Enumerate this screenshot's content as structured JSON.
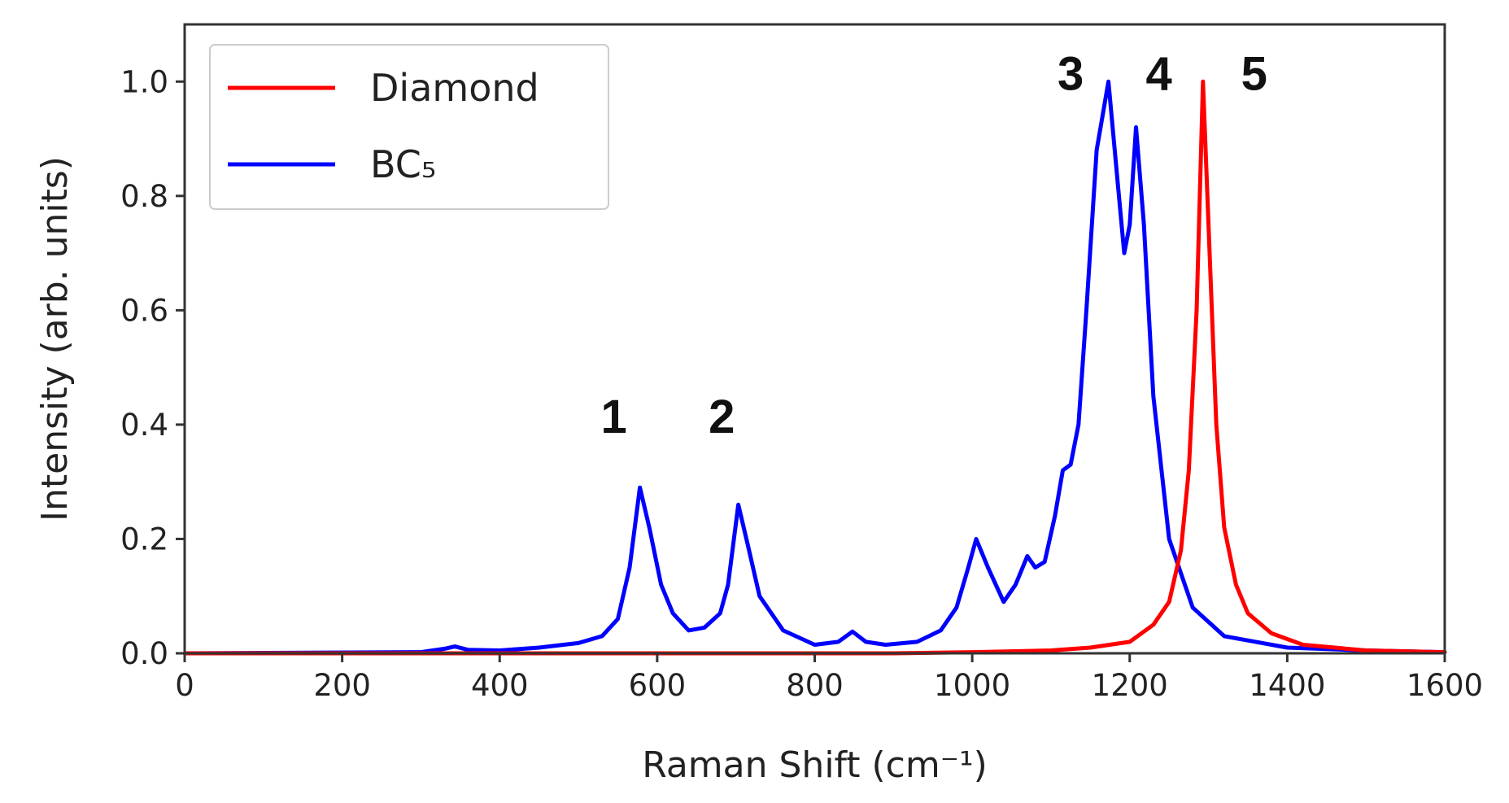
{
  "chart_data": {
    "type": "line",
    "title": "",
    "xlabel": "Raman Shift (cm⁻¹)",
    "ylabel": "Intensity (arb. units)",
    "xlim": [
      0,
      1600
    ],
    "ylim": [
      0,
      1.1
    ],
    "xticks": [
      "0",
      "200",
      "400",
      "600",
      "800",
      "1000",
      "1200",
      "1400",
      "1600"
    ],
    "yticks": [
      "0.0",
      "0.2",
      "0.4",
      "0.6",
      "0.8",
      "1.0"
    ],
    "grid": false,
    "legend_position": "upper-left",
    "series": [
      {
        "name": "Diamond",
        "color": "#ff0000",
        "x": [
          0,
          600,
          900,
          1000,
          1100,
          1150,
          1200,
          1230,
          1250,
          1265,
          1275,
          1285,
          1293,
          1300,
          1310,
          1320,
          1335,
          1350,
          1380,
          1420,
          1500,
          1600
        ],
        "y": [
          0.0,
          0.0,
          0.0,
          0.002,
          0.005,
          0.01,
          0.02,
          0.05,
          0.09,
          0.18,
          0.32,
          0.6,
          1.0,
          0.75,
          0.4,
          0.22,
          0.12,
          0.07,
          0.035,
          0.015,
          0.005,
          0.002
        ]
      },
      {
        "name": "BC₅",
        "color": "#0000ff",
        "x": [
          0,
          300,
          330,
          343,
          360,
          400,
          450,
          500,
          530,
          550,
          565,
          578,
          590,
          605,
          620,
          640,
          660,
          680,
          690,
          703,
          715,
          730,
          760,
          800,
          830,
          848,
          865,
          890,
          930,
          960,
          980,
          995,
          1005,
          1020,
          1040,
          1055,
          1070,
          1080,
          1092,
          1105,
          1115,
          1125,
          1135,
          1145,
          1158,
          1173,
          1185,
          1193,
          1200,
          1208,
          1218,
          1230,
          1250,
          1280,
          1320,
          1400,
          1500,
          1600
        ],
        "y": [
          0.0,
          0.002,
          0.008,
          0.012,
          0.006,
          0.005,
          0.01,
          0.018,
          0.03,
          0.06,
          0.15,
          0.29,
          0.22,
          0.12,
          0.07,
          0.04,
          0.045,
          0.07,
          0.12,
          0.26,
          0.19,
          0.1,
          0.04,
          0.015,
          0.02,
          0.038,
          0.02,
          0.015,
          0.02,
          0.04,
          0.08,
          0.15,
          0.2,
          0.15,
          0.09,
          0.12,
          0.17,
          0.15,
          0.16,
          0.24,
          0.32,
          0.33,
          0.4,
          0.6,
          0.88,
          1.0,
          0.82,
          0.7,
          0.75,
          0.92,
          0.75,
          0.45,
          0.2,
          0.08,
          0.03,
          0.01,
          0.005,
          0.002
        ]
      }
    ],
    "annotations": [
      {
        "text": "1",
        "x": 545,
        "y": 0.4
      },
      {
        "text": "2",
        "x": 682,
        "y": 0.4
      },
      {
        "text": "3",
        "x": 1125,
        "y": 1.0
      },
      {
        "text": "4",
        "x": 1237,
        "y": 1.0
      },
      {
        "text": "5",
        "x": 1358,
        "y": 1.0
      }
    ]
  }
}
